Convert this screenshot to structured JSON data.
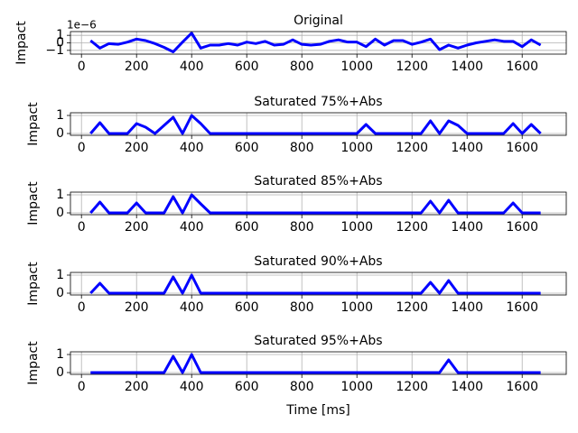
{
  "chart_data": [
    {
      "type": "line",
      "title": "Original",
      "ylabel": "Impact",
      "y_offset_text": "1e−6",
      "x": [
        33,
        67,
        100,
        133,
        167,
        200,
        233,
        267,
        300,
        333,
        367,
        400,
        433,
        467,
        500,
        533,
        567,
        600,
        633,
        667,
        700,
        733,
        767,
        800,
        833,
        867,
        900,
        933,
        967,
        1000,
        1033,
        1067,
        1100,
        1133,
        1167,
        1200,
        1233,
        1267,
        1300,
        1333,
        1367,
        1400,
        1433,
        1467,
        1500,
        1533,
        1567,
        1600,
        1633,
        1667
      ],
      "values": [
        0.3,
        -0.7,
        -0.1,
        -0.2,
        0.1,
        0.5,
        0.3,
        -0.1,
        -0.6,
        -1.2,
        0.1,
        1.3,
        -0.7,
        -0.3,
        -0.3,
        -0.1,
        -0.3,
        0.1,
        -0.1,
        0.2,
        -0.3,
        -0.2,
        0.4,
        -0.2,
        -0.3,
        -0.2,
        0.2,
        0.4,
        0.1,
        0.1,
        -0.5,
        0.5,
        -0.3,
        0.3,
        0.3,
        -0.2,
        0.1,
        0.5,
        -0.9,
        -0.3,
        -0.7,
        -0.3,
        0,
        0.2,
        0.4,
        0.2,
        0.2,
        -0.5,
        0.4,
        -0.3
      ],
      "color": "#0000ff",
      "xlim": [
        -40,
        1760
      ],
      "xticks": [
        0,
        200,
        400,
        600,
        800,
        1000,
        1200,
        1400,
        1600
      ],
      "ylim": [
        -1.5,
        1.5
      ],
      "yticks": [
        {
          "value": -1,
          "label": "−1"
        },
        0,
        1
      ],
      "grid": true
    },
    {
      "type": "line",
      "title": "Saturated 75%+Abs",
      "ylabel": "Impact",
      "x": [
        33,
        67,
        100,
        133,
        167,
        200,
        233,
        267,
        300,
        333,
        367,
        400,
        433,
        467,
        500,
        533,
        567,
        600,
        633,
        667,
        700,
        733,
        767,
        800,
        833,
        867,
        900,
        933,
        967,
        1000,
        1033,
        1067,
        1100,
        1133,
        1167,
        1200,
        1233,
        1267,
        1300,
        1333,
        1367,
        1400,
        1433,
        1467,
        1500,
        1533,
        1567,
        1600,
        1633,
        1667
      ],
      "values": [
        0,
        0.6,
        0,
        0,
        0,
        0.55,
        0.35,
        0,
        0.45,
        0.9,
        0,
        1,
        0.55,
        0,
        0,
        0,
        0,
        0,
        0,
        0,
        0,
        0,
        0,
        0,
        0,
        0,
        0,
        0,
        0,
        0,
        0.5,
        0,
        0,
        0,
        0,
        0,
        0,
        0.7,
        0,
        0.7,
        0.45,
        0,
        0,
        0,
        0,
        0,
        0.55,
        0,
        0.5,
        0
      ],
      "color": "#0000ff",
      "xlim": [
        -40,
        1760
      ],
      "xticks": [
        0,
        200,
        400,
        600,
        800,
        1000,
        1200,
        1400,
        1600
      ],
      "ylim": [
        -0.1,
        1.15
      ],
      "yticks": [
        0,
        1
      ],
      "grid": true
    },
    {
      "type": "line",
      "title": "Saturated 85%+Abs",
      "ylabel": "Impact",
      "x": [
        33,
        67,
        100,
        133,
        167,
        200,
        233,
        267,
        300,
        333,
        367,
        400,
        433,
        467,
        500,
        533,
        567,
        600,
        633,
        667,
        700,
        733,
        767,
        800,
        833,
        867,
        900,
        933,
        967,
        1000,
        1033,
        1067,
        1100,
        1133,
        1167,
        1200,
        1233,
        1267,
        1300,
        1333,
        1367,
        1400,
        1433,
        1467,
        1500,
        1533,
        1567,
        1600,
        1633,
        1667
      ],
      "values": [
        0,
        0.6,
        0,
        0,
        0,
        0.55,
        0,
        0,
        0,
        0.9,
        0,
        1,
        0.5,
        0,
        0,
        0,
        0,
        0,
        0,
        0,
        0,
        0,
        0,
        0,
        0,
        0,
        0,
        0,
        0,
        0,
        0,
        0,
        0,
        0,
        0,
        0,
        0,
        0.65,
        0,
        0.7,
        0,
        0,
        0,
        0,
        0,
        0,
        0.55,
        0,
        0,
        0
      ],
      "color": "#0000ff",
      "xlim": [
        -40,
        1760
      ],
      "xticks": [
        0,
        200,
        400,
        600,
        800,
        1000,
        1200,
        1400,
        1600
      ],
      "ylim": [
        -0.1,
        1.15
      ],
      "yticks": [
        0,
        1
      ],
      "grid": true
    },
    {
      "type": "line",
      "title": "Saturated 90%+Abs",
      "ylabel": "Impact",
      "x": [
        33,
        67,
        100,
        133,
        167,
        200,
        233,
        267,
        300,
        333,
        367,
        400,
        433,
        467,
        500,
        533,
        567,
        600,
        633,
        667,
        700,
        733,
        767,
        800,
        833,
        867,
        900,
        933,
        967,
        1000,
        1033,
        1067,
        1100,
        1133,
        1167,
        1200,
        1233,
        1267,
        1300,
        1333,
        1367,
        1400,
        1433,
        1467,
        1500,
        1533,
        1567,
        1600,
        1633,
        1667
      ],
      "values": [
        0,
        0.55,
        0,
        0,
        0,
        0,
        0,
        0,
        0,
        0.9,
        0,
        1,
        0,
        0,
        0,
        0,
        0,
        0,
        0,
        0,
        0,
        0,
        0,
        0,
        0,
        0,
        0,
        0,
        0,
        0,
        0,
        0,
        0,
        0,
        0,
        0,
        0,
        0.6,
        0,
        0.7,
        0,
        0,
        0,
        0,
        0,
        0,
        0,
        0,
        0,
        0
      ],
      "color": "#0000ff",
      "xlim": [
        -40,
        1760
      ],
      "xticks": [
        0,
        200,
        400,
        600,
        800,
        1000,
        1200,
        1400,
        1600
      ],
      "ylim": [
        -0.1,
        1.15
      ],
      "yticks": [
        0,
        1
      ],
      "grid": true
    },
    {
      "type": "line",
      "title": "Saturated 95%+Abs",
      "ylabel": "Impact",
      "xlabel": "Time [ms]",
      "x": [
        33,
        67,
        100,
        133,
        167,
        200,
        233,
        267,
        300,
        333,
        367,
        400,
        433,
        467,
        500,
        533,
        567,
        600,
        633,
        667,
        700,
        733,
        767,
        800,
        833,
        867,
        900,
        933,
        967,
        1000,
        1033,
        1067,
        1100,
        1133,
        1167,
        1200,
        1233,
        1267,
        1300,
        1333,
        1367,
        1400,
        1433,
        1467,
        1500,
        1533,
        1567,
        1600,
        1633,
        1667
      ],
      "values": [
        0,
        0,
        0,
        0,
        0,
        0,
        0,
        0,
        0,
        0.9,
        0,
        1,
        0,
        0,
        0,
        0,
        0,
        0,
        0,
        0,
        0,
        0,
        0,
        0,
        0,
        0,
        0,
        0,
        0,
        0,
        0,
        0,
        0,
        0,
        0,
        0,
        0,
        0,
        0,
        0.7,
        0,
        0,
        0,
        0,
        0,
        0,
        0,
        0,
        0,
        0
      ],
      "color": "#0000ff",
      "xlim": [
        -40,
        1760
      ],
      "xticks": [
        0,
        200,
        400,
        600,
        800,
        1000,
        1200,
        1400,
        1600
      ],
      "ylim": [
        -0.1,
        1.15
      ],
      "yticks": [
        0,
        1
      ],
      "grid": true
    }
  ]
}
